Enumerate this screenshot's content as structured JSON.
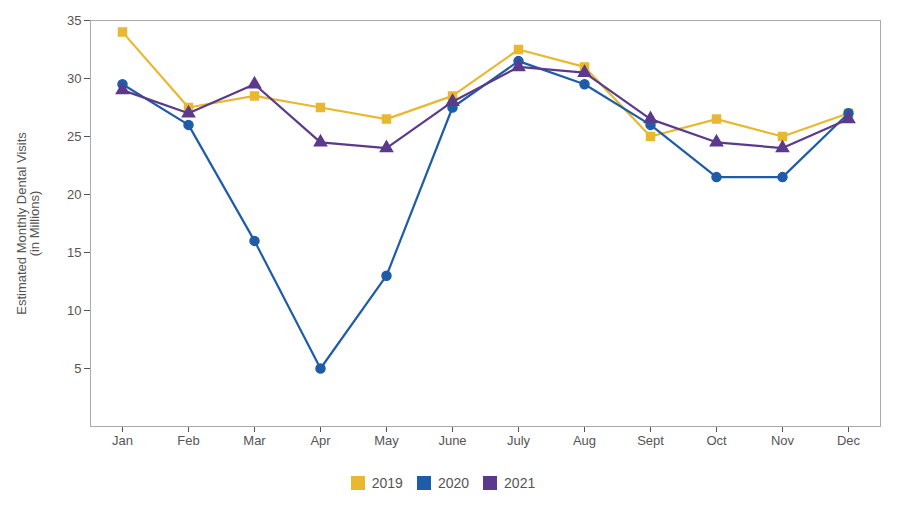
{
  "chart_data": {
    "type": "line",
    "y_label": "Estimated Monthly Dental Visits\n(in Millions)",
    "categories": [
      "Jan",
      "Feb",
      "Mar",
      "Apr",
      "May",
      "June",
      "July",
      "Aug",
      "Sept",
      "Oct",
      "Nov",
      "Dec"
    ],
    "series": [
      {
        "name": "2019",
        "color": "#e8b830",
        "marker": "square",
        "values": [
          34,
          27.5,
          28.5,
          27.5,
          26.5,
          28.5,
          32.5,
          31,
          25,
          26.5,
          25,
          27
        ]
      },
      {
        "name": "2020",
        "color": "#1f5ca8",
        "marker": "circle",
        "values": [
          29.5,
          26,
          16,
          5,
          13,
          27.5,
          31.5,
          29.5,
          26,
          21.5,
          21.5,
          27
        ]
      },
      {
        "name": "2021",
        "color": "#5b3a8c",
        "marker": "triangle",
        "values": [
          29,
          27,
          29.5,
          24.5,
          24,
          28,
          31,
          30.5,
          26.5,
          24.5,
          24,
          26.5
        ]
      }
    ],
    "ylim": [
      0,
      35
    ],
    "yticks": [
      5,
      10,
      15,
      20,
      25,
      30,
      35
    ],
    "grid": false,
    "legend": "bottom"
  }
}
